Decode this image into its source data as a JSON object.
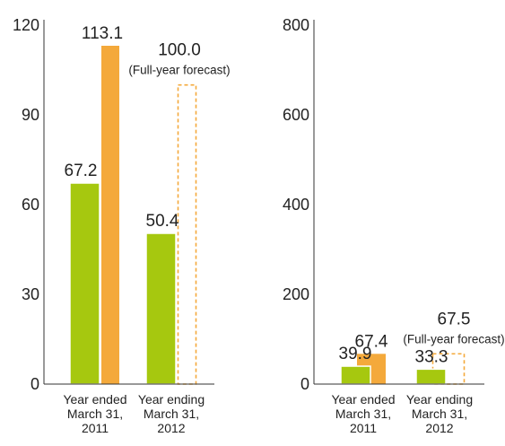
{
  "colors": {
    "first_half": "#a6c80f",
    "full_year": "#f4a93b",
    "axis": "#333333",
    "text": "#222222"
  },
  "chart_data": [
    {
      "type": "bar",
      "categories": [
        [
          "Year ended",
          "March 31,",
          "2011"
        ],
        [
          "Year ending",
          "March 31,",
          "2012"
        ]
      ],
      "yticks": [
        "0",
        "30",
        "60",
        "90",
        "120"
      ],
      "ylim": [
        0,
        120
      ],
      "series": [
        {
          "key": "first_half",
          "values": [
            67.2,
            50.4
          ],
          "labels": [
            "67.2",
            "50.4"
          ]
        },
        {
          "key": "full_year",
          "values": [
            113.1,
            100.0
          ],
          "labels": [
            "113.1",
            "100.0"
          ],
          "forecast": [
            false,
            true
          ]
        }
      ],
      "forecast_note": "(Full-year forecast)"
    },
    {
      "type": "bar",
      "categories": [
        [
          "Year ended",
          "March 31,",
          "2011"
        ],
        [
          "Year ending",
          "March 31,",
          "2012"
        ]
      ],
      "yticks": [
        "0",
        "200",
        "400",
        "600",
        "800"
      ],
      "ylim": [
        0,
        800
      ],
      "series": [
        {
          "key": "first_half",
          "values": [
            39.9,
            33.3
          ],
          "labels": [
            "39.9",
            "33.3"
          ]
        },
        {
          "key": "full_year",
          "values": [
            67.4,
            67.5
          ],
          "labels": [
            "67.4",
            "67.5"
          ],
          "forecast": [
            false,
            true
          ]
        }
      ],
      "forecast_note": "(Full-year forecast)"
    }
  ]
}
